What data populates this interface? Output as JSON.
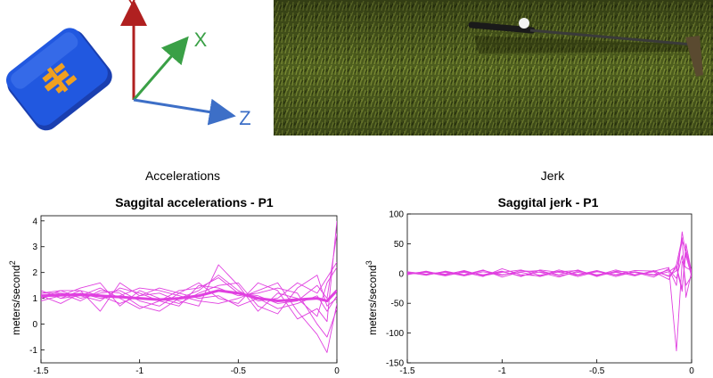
{
  "device": {
    "icon": "imu-sensor-icon",
    "color": "#1f4fd8",
    "logo_color": "#f0a020"
  },
  "axes_diagram": {
    "labels": {
      "y": "Y",
      "x": "X",
      "z": "Z"
    },
    "colors": {
      "y": "#b02020",
      "x": "#3aa046",
      "z": "#3d6fc7"
    }
  },
  "scene": {
    "description_icon": "golf-putting-scene-icon"
  },
  "chart_data": [
    {
      "type": "line",
      "section_title": "Accelerations",
      "title": "Saggital accelerations - P1",
      "xlabel": "",
      "ylabel": "meters/second",
      "ylabel_superscript": "2",
      "xlim": [
        -1.5,
        0
      ],
      "ylim": [
        -1.5,
        4.2
      ],
      "xticks": [
        -1.5,
        -1,
        -0.5,
        0
      ],
      "xtick_labels": [
        "-1.5",
        "-1",
        "-0.5",
        "0"
      ],
      "yticks": [
        -1,
        0,
        1,
        2,
        3,
        4
      ],
      "ytick_labels": [
        "-1",
        "0",
        "1",
        "2",
        "3",
        "4"
      ],
      "line_color": "#e040e0",
      "x": [
        -1.5,
        -1.4,
        -1.3,
        -1.2,
        -1.1,
        -1.0,
        -0.9,
        -0.8,
        -0.7,
        -0.6,
        -0.5,
        -0.4,
        -0.3,
        -0.2,
        -0.1,
        -0.05,
        0
      ],
      "mean": [
        1.1,
        1.12,
        1.15,
        1.1,
        1.05,
        1.0,
        0.95,
        1.0,
        1.1,
        1.3,
        1.2,
        1.0,
        0.9,
        0.95,
        1.0,
        0.9,
        1.3
      ],
      "series": [
        {
          "values": [
            1.0,
            1.2,
            1.1,
            1.4,
            1.0,
            0.6,
            0.9,
            1.3,
            1.4,
            1.8,
            1.2,
            1.1,
            0.8,
            0.9,
            1.5,
            1.0,
            3.5
          ]
        },
        {
          "values": [
            1.3,
            1.0,
            1.3,
            0.5,
            1.6,
            1.1,
            1.2,
            0.9,
            0.7,
            2.3,
            1.5,
            0.5,
            1.2,
            1.0,
            0.3,
            1.6,
            2.2
          ]
        },
        {
          "values": [
            1.2,
            1.3,
            1.0,
            1.2,
            1.3,
            0.9,
            0.7,
            1.2,
            1.6,
            1.0,
            0.8,
            1.6,
            1.3,
            0.2,
            0.6,
            0.1,
            4.0
          ]
        },
        {
          "values": [
            0.9,
            1.1,
            1.4,
            1.6,
            0.7,
            1.3,
            1.0,
            0.8,
            1.2,
            1.5,
            1.6,
            0.7,
            0.4,
            1.4,
            1.9,
            0.7,
            1.0
          ]
        },
        {
          "values": [
            1.1,
            0.8,
            1.2,
            1.0,
            1.1,
            1.4,
            1.3,
            1.1,
            0.9,
            0.8,
            1.0,
            1.3,
            1.6,
            0.5,
            -0.4,
            -1.1,
            0.8
          ]
        },
        {
          "values": [
            1.2,
            1.2,
            0.9,
            1.3,
            1.2,
            0.7,
            0.5,
            1.0,
            1.3,
            1.9,
            1.3,
            0.9,
            1.0,
            1.6,
            1.2,
            1.8,
            2.4
          ]
        },
        {
          "values": [
            1.0,
            1.3,
            1.3,
            1.1,
            0.8,
            1.1,
            1.4,
            1.2,
            1.0,
            1.1,
            0.7,
            1.0,
            0.6,
            0.8,
            1.1,
            0.5,
            1.1
          ]
        },
        {
          "values": [
            1.3,
            1.0,
            1.1,
            0.9,
            1.4,
            1.2,
            0.9,
            0.7,
            1.5,
            1.4,
            1.1,
            1.2,
            1.4,
            1.2,
            0.0,
            -0.5,
            0.6
          ]
        }
      ]
    },
    {
      "type": "line",
      "section_title": "Jerk",
      "title": "Saggital jerk - P1",
      "xlabel": "",
      "ylabel": "meters/second",
      "ylabel_superscript": "3",
      "xlim": [
        -1.5,
        0
      ],
      "ylim": [
        -150,
        100
      ],
      "xticks": [
        -1.5,
        -1,
        -0.5,
        0
      ],
      "xtick_labels": [
        "-1.5",
        "-1",
        "-0.5",
        "0"
      ],
      "yticks": [
        -150,
        -100,
        -50,
        0,
        50,
        100
      ],
      "ytick_labels": [
        "-150",
        "-100",
        "-50",
        "0",
        "50",
        "100"
      ],
      "line_color": "#e040e0",
      "x": [
        -1.5,
        -1.4,
        -1.3,
        -1.2,
        -1.1,
        -1.0,
        -0.9,
        -0.8,
        -0.7,
        -0.6,
        -0.5,
        -0.4,
        -0.3,
        -0.2,
        -0.12,
        -0.08,
        -0.05,
        -0.03,
        0
      ],
      "series": [
        {
          "values": [
            0,
            3,
            -2,
            5,
            -4,
            2,
            6,
            -3,
            4,
            -5,
            3,
            -2,
            5,
            4,
            10,
            -130,
            20,
            10,
            5
          ]
        },
        {
          "values": [
            2,
            -3,
            4,
            -2,
            6,
            -6,
            3,
            5,
            -4,
            2,
            -3,
            6,
            -2,
            3,
            -10,
            15,
            60,
            -40,
            3
          ]
        },
        {
          "values": [
            -2,
            4,
            -3,
            2,
            -5,
            8,
            -2,
            -4,
            6,
            -2,
            5,
            -3,
            2,
            -6,
            8,
            -20,
            70,
            30,
            -5
          ]
        },
        {
          "values": [
            1,
            -2,
            2,
            -4,
            3,
            -3,
            5,
            2,
            -6,
            4,
            -2,
            3,
            -4,
            5,
            -5,
            10,
            -30,
            50,
            2
          ]
        },
        {
          "values": [
            -1,
            2,
            -4,
            3,
            -2,
            4,
            -5,
            6,
            2,
            -3,
            4,
            -5,
            3,
            -2,
            6,
            -8,
            30,
            -20,
            -4
          ]
        },
        {
          "values": [
            3,
            -1,
            3,
            -3,
            5,
            -2,
            2,
            -5,
            3,
            5,
            -4,
            2,
            -3,
            4,
            -4,
            5,
            55,
            40,
            4
          ]
        },
        {
          "values": [
            0,
            2,
            -1,
            4,
            -3,
            3,
            -4,
            3,
            -2,
            6,
            -5,
            4,
            2,
            -3,
            3,
            12,
            -25,
            35,
            0
          ]
        }
      ]
    }
  ]
}
